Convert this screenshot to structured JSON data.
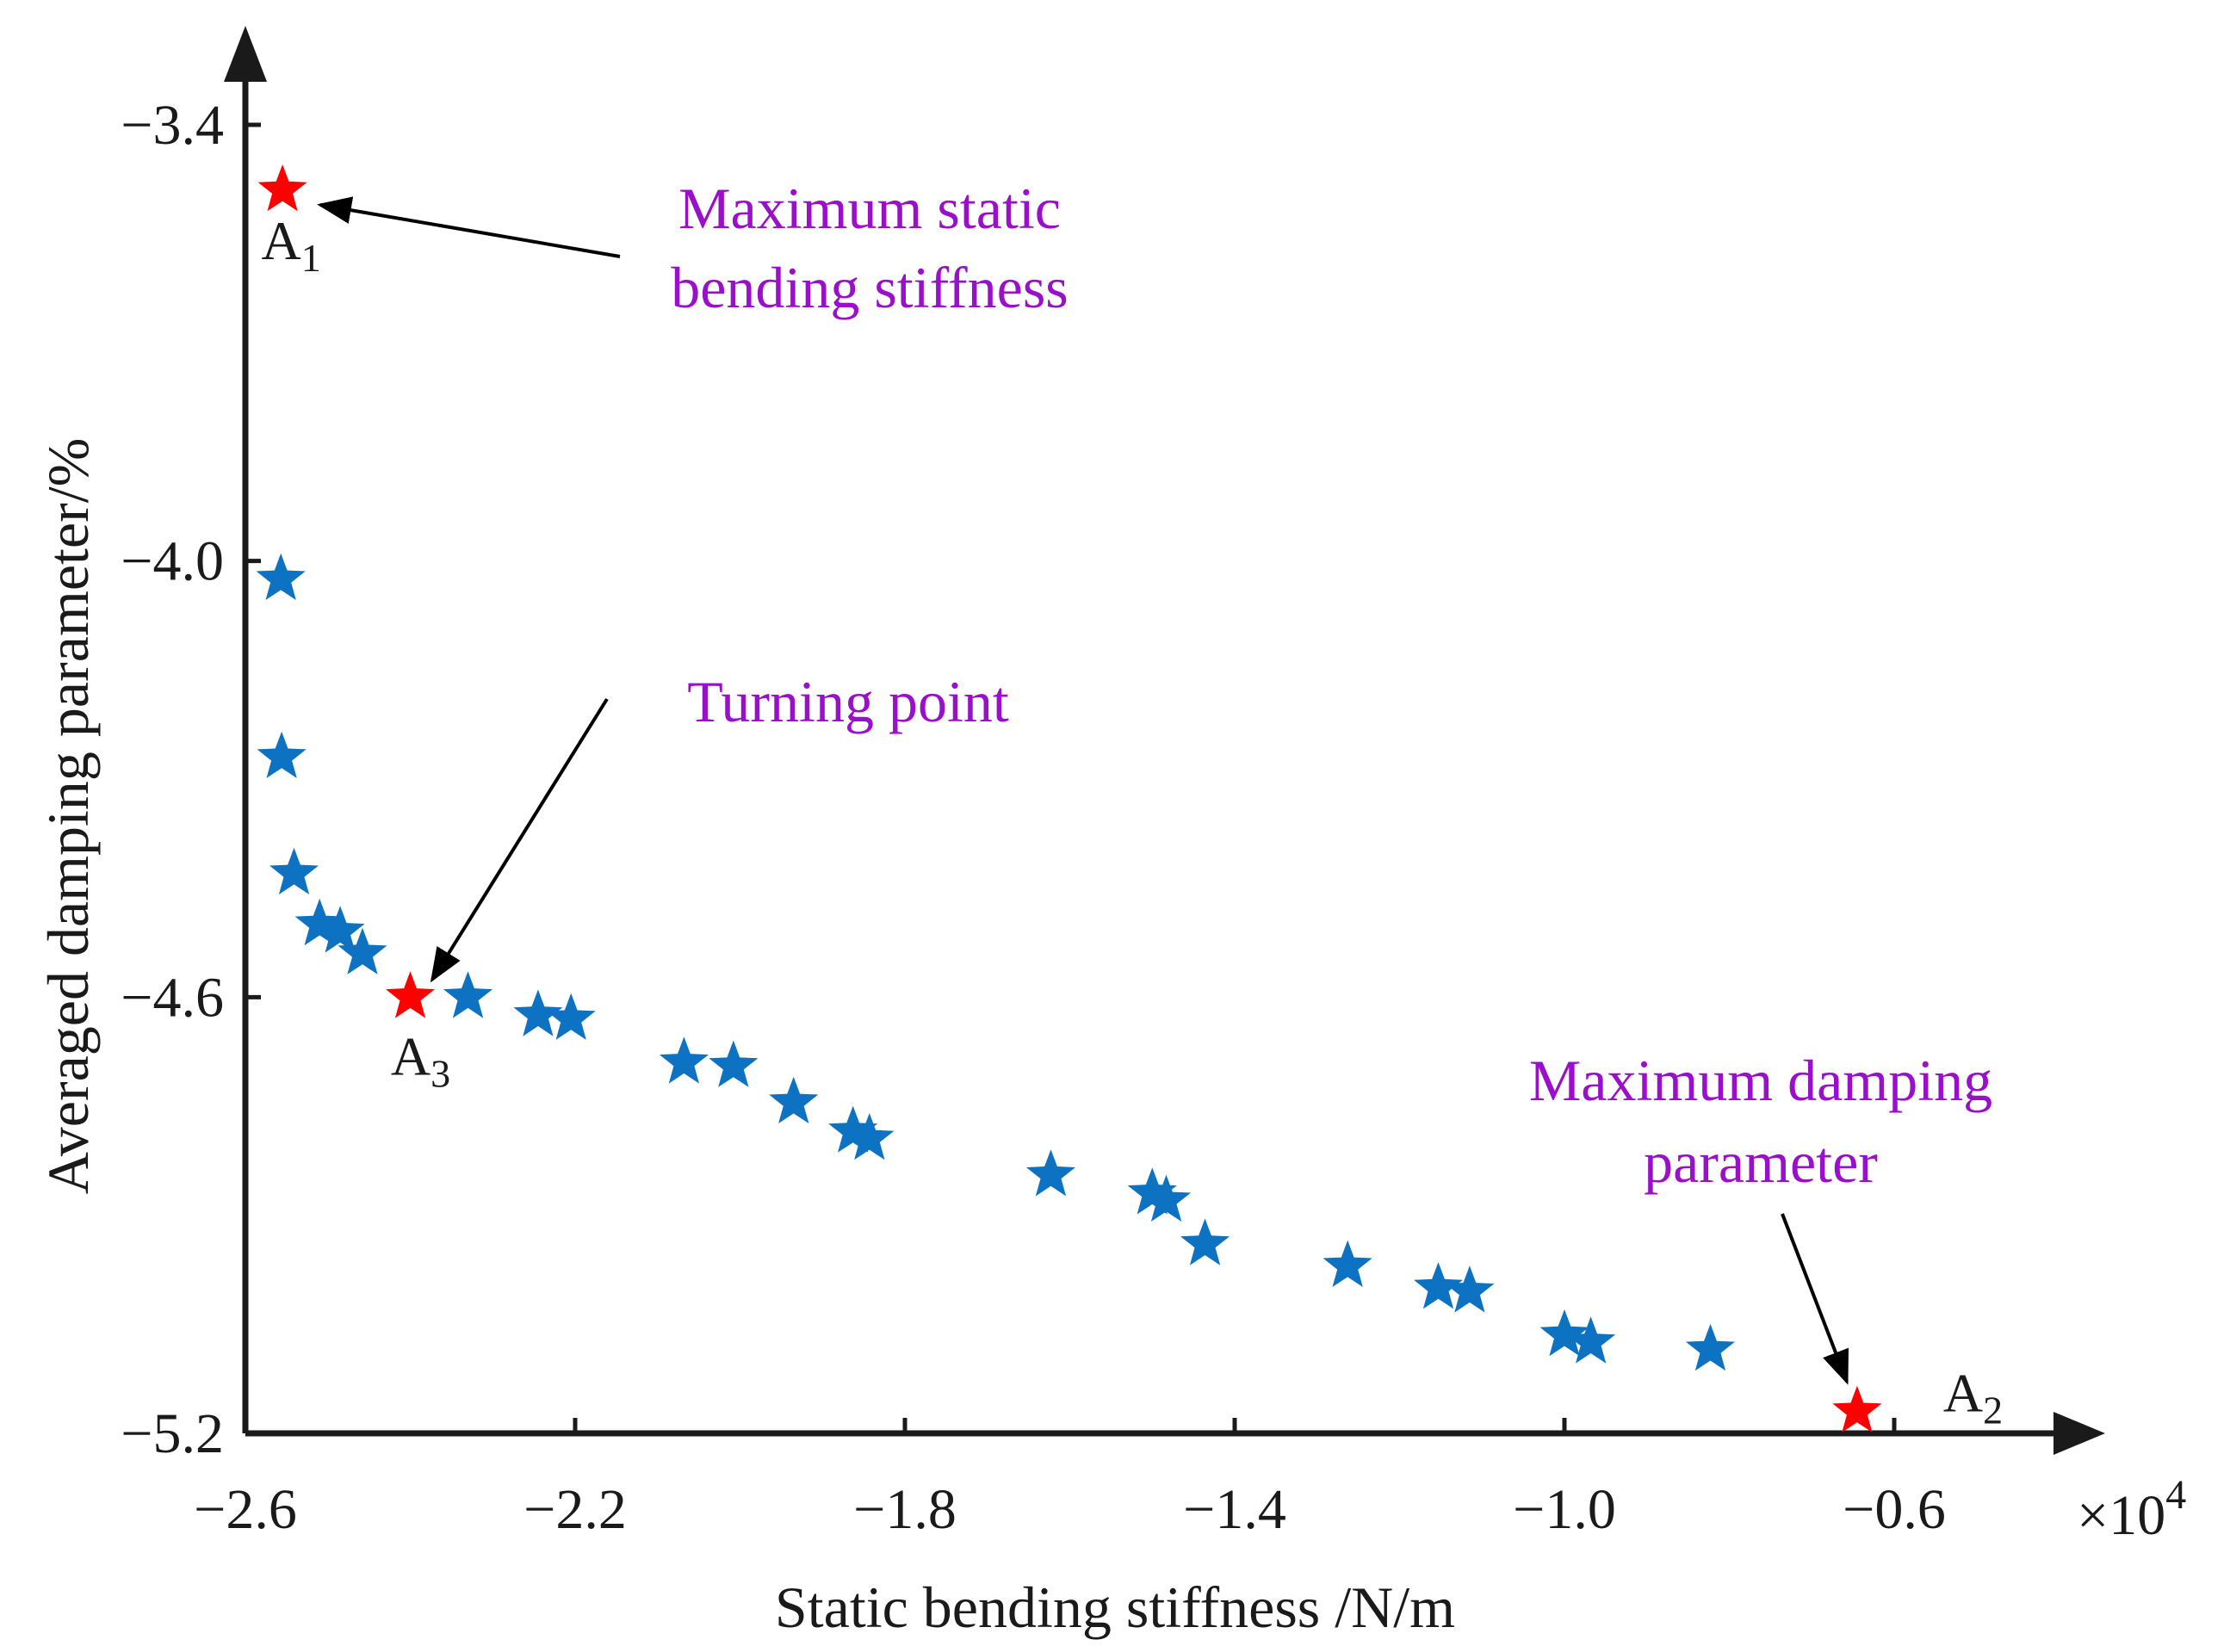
{
  "chart_data": {
    "type": "scatter",
    "xlabel": "Static bending stiffness /N/m",
    "ylabel": "Averaged damping parameter/%",
    "x_multiplier_base": "×10",
    "x_multiplier_exp": "4",
    "xlim": [
      -2.6,
      -0.4
    ],
    "ylim": [
      -5.2,
      -3.28
    ],
    "x_ticks": [
      -2.6,
      -2.2,
      -1.8,
      -1.4,
      -1.0,
      -0.6
    ],
    "x_tick_labels": [
      "−2.6",
      "−2.2",
      "−1.8",
      "−1.4",
      "−1.0",
      "−0.6"
    ],
    "y_ticks": [
      -3.4,
      -4.0,
      -4.6,
      -5.2
    ],
    "y_tick_labels": [
      "−3.4",
      "−4.0",
      "−4.6",
      "−5.2"
    ],
    "grid": false,
    "colors": {
      "pareto": "#0c72c1",
      "highlight": "#ff0000",
      "annotation": "#9a0fc9",
      "axis": "#1a1a1a"
    },
    "series": [
      {
        "marker": "star",
        "color": "#0c72c1",
        "points": [
          [
            -2.557,
            -4.025
          ],
          [
            -2.556,
            -4.27
          ],
          [
            -2.541,
            -4.43
          ],
          [
            -2.51,
            -4.5
          ],
          [
            -2.485,
            -4.51
          ],
          [
            -2.458,
            -4.54
          ],
          [
            -2.33,
            -4.6
          ],
          [
            -2.245,
            -4.625
          ],
          [
            -2.205,
            -4.63
          ],
          [
            -2.068,
            -4.69
          ],
          [
            -2.008,
            -4.695
          ],
          [
            -1.935,
            -4.745
          ],
          [
            -1.863,
            -4.785
          ],
          [
            -1.843,
            -4.795
          ],
          [
            -1.623,
            -4.845
          ],
          [
            -1.5,
            -4.87
          ],
          [
            -1.483,
            -4.88
          ],
          [
            -1.436,
            -4.94
          ],
          [
            -1.263,
            -4.97
          ],
          [
            -1.153,
            -5.0
          ],
          [
            -1.115,
            -5.005
          ],
          [
            -1.0,
            -5.065
          ],
          [
            -0.968,
            -5.075
          ],
          [
            -0.823,
            -5.085
          ]
        ]
      },
      {
        "marker": "star",
        "color": "#ff0000",
        "points": [
          [
            -2.555,
            -3.49
          ],
          [
            -2.4,
            -4.6
          ],
          [
            -0.645,
            -5.17
          ]
        ]
      }
    ],
    "point_labels": [
      {
        "base": "A",
        "sub": "1",
        "x": -2.555,
        "y": -3.49
      },
      {
        "base": "A",
        "sub": "2",
        "x": -0.645,
        "y": -5.17
      },
      {
        "base": "A",
        "sub": "3",
        "x": -2.4,
        "y": -4.6
      }
    ],
    "annotations": [
      {
        "lines": [
          "Maximum static",
          "bending stiffness"
        ],
        "target": [
          -2.555,
          -3.49
        ]
      },
      {
        "lines": [
          "Turning point"
        ],
        "target": [
          -2.4,
          -4.6
        ]
      },
      {
        "lines": [
          "Maximum damping",
          "parameter"
        ],
        "target": [
          -0.645,
          -5.17
        ]
      }
    ]
  }
}
